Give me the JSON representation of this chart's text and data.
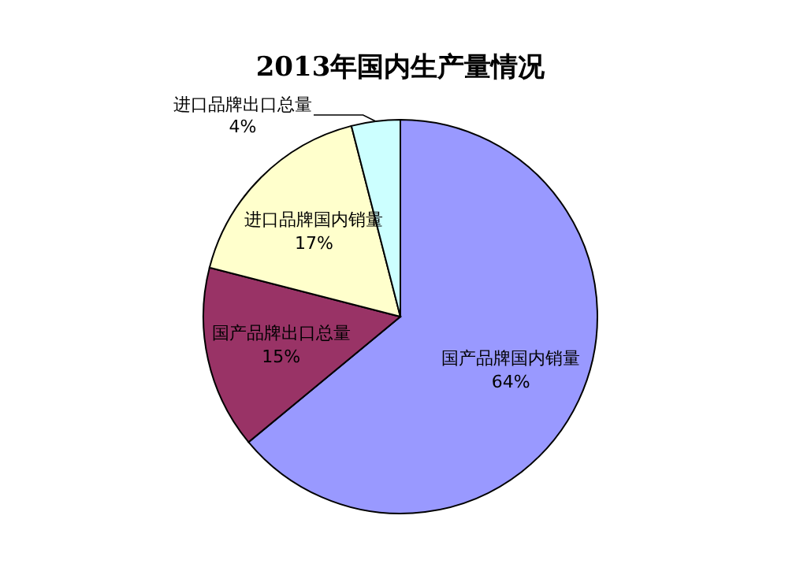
{
  "chart_data": {
    "type": "pie",
    "title": "2013年国内生产量情况",
    "categories": [
      "国产品牌国内销量",
      "国产品牌出口总量",
      "进口品牌国内销量",
      "进口品牌出口总量"
    ],
    "values": [
      64,
      15,
      17,
      4
    ],
    "value_labels": [
      "64%",
      "15%",
      "17%",
      "4%"
    ],
    "colors": [
      "#9999ff",
      "#993366",
      "#ffffcc",
      "#ccffff"
    ]
  }
}
